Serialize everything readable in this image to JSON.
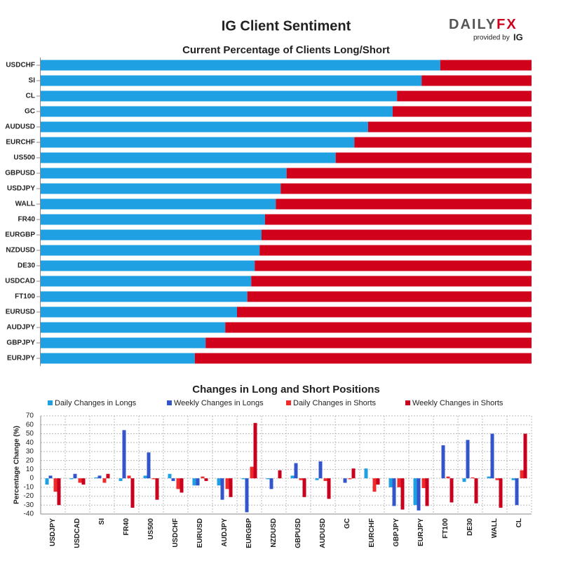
{
  "header": {
    "title": "IG Client Sentiment",
    "logo_main": "DAILY",
    "logo_accent": "FX",
    "provided_by": "provided by",
    "provider": "IG"
  },
  "chart_data": [
    {
      "type": "bar",
      "orientation": "horizontal",
      "stacked": true,
      "title": "Current Percentage of Clients Long/Short",
      "categories": [
        "USDCHF",
        "SI",
        "CL",
        "GC",
        "AUDUSD",
        "EURCHF",
        "US500",
        "GBPUSD",
        "USDJPY",
        "WALL",
        "FR40",
        "EURGBP",
        "NZDUSD",
        "DE30",
        "USDCAD",
        "FT100",
        "EURUSD",
        "AUDJPY",
        "GBPJPY",
        "EURJPY"
      ],
      "series": [
        {
          "color": "#1fa0e3",
          "values": [
            81.4,
            77.6,
            72.6,
            71.7,
            66.7,
            63.9,
            60.1,
            50.1,
            48.9,
            47.9,
            45.7,
            45.0,
            44.6,
            43.6,
            42.9,
            42.1,
            40.0,
            37.6,
            33.6,
            31.4
          ]
        },
        {
          "color": "#d0021b",
          "values": [
            18.6,
            22.4,
            27.4,
            28.3,
            33.3,
            36.1,
            39.9,
            49.9,
            51.1,
            52.1,
            54.3,
            55.0,
            55.4,
            56.4,
            57.1,
            57.9,
            60.0,
            62.4,
            66.4,
            68.6
          ]
        }
      ]
    },
    {
      "type": "bar",
      "orientation": "vertical",
      "stacked": false,
      "title": "Changes in Long and Short Positions",
      "y_label": "Percentage Change (%)",
      "legend": "top",
      "grid": true,
      "categories": [
        "USDJPY",
        "USDCAD",
        "SI",
        "FR40",
        "US500",
        "USDCHF",
        "EURUSD",
        "AUDJPY",
        "EURGBP",
        "NZDUSD",
        "GBPUSD",
        "AUDUSD",
        "GC",
        "EURCHF",
        "GBPJPY",
        "EURJPY",
        "FT100",
        "DE30",
        "WALL",
        "CL"
      ],
      "ylim": [
        -40,
        70
      ],
      "yticks": [
        -40,
        -30,
        -20,
        -10,
        0,
        10,
        20,
        30,
        40,
        50,
        60,
        70
      ],
      "series": [
        {
          "name": "Daily Changes in Longs",
          "color": "#1fa0e3",
          "values": [
            -7,
            -1,
            1,
            -3,
            3,
            5,
            -8,
            -8,
            -1,
            -1,
            3,
            -2,
            0,
            11,
            -10,
            -30,
            0,
            -4,
            2,
            -2
          ]
        },
        {
          "name": "Weekly Changes in Longs",
          "color": "#3355cc",
          "values": [
            3,
            5,
            3,
            54,
            29,
            -3,
            -8,
            -24,
            -38,
            -12,
            17,
            19,
            -5,
            0,
            -31,
            -36,
            37,
            43,
            50,
            -30
          ]
        },
        {
          "name": "Daily Changes in Shorts",
          "color": "#ee2a2a",
          "values": [
            -15,
            -5,
            -5,
            3,
            -1,
            -12,
            2,
            -12,
            13,
            0,
            -2,
            -3,
            -1,
            -15,
            -10,
            -11,
            2,
            1,
            -2,
            9
          ]
        },
        {
          "name": "Weekly Changes in Shorts",
          "color": "#c8001e",
          "values": [
            -30,
            -7,
            5,
            -33,
            -24,
            -16,
            -3,
            -21,
            62,
            9,
            -21,
            -23,
            11,
            -7,
            -35,
            -31,
            -27,
            -28,
            -33,
            50
          ]
        }
      ]
    }
  ]
}
